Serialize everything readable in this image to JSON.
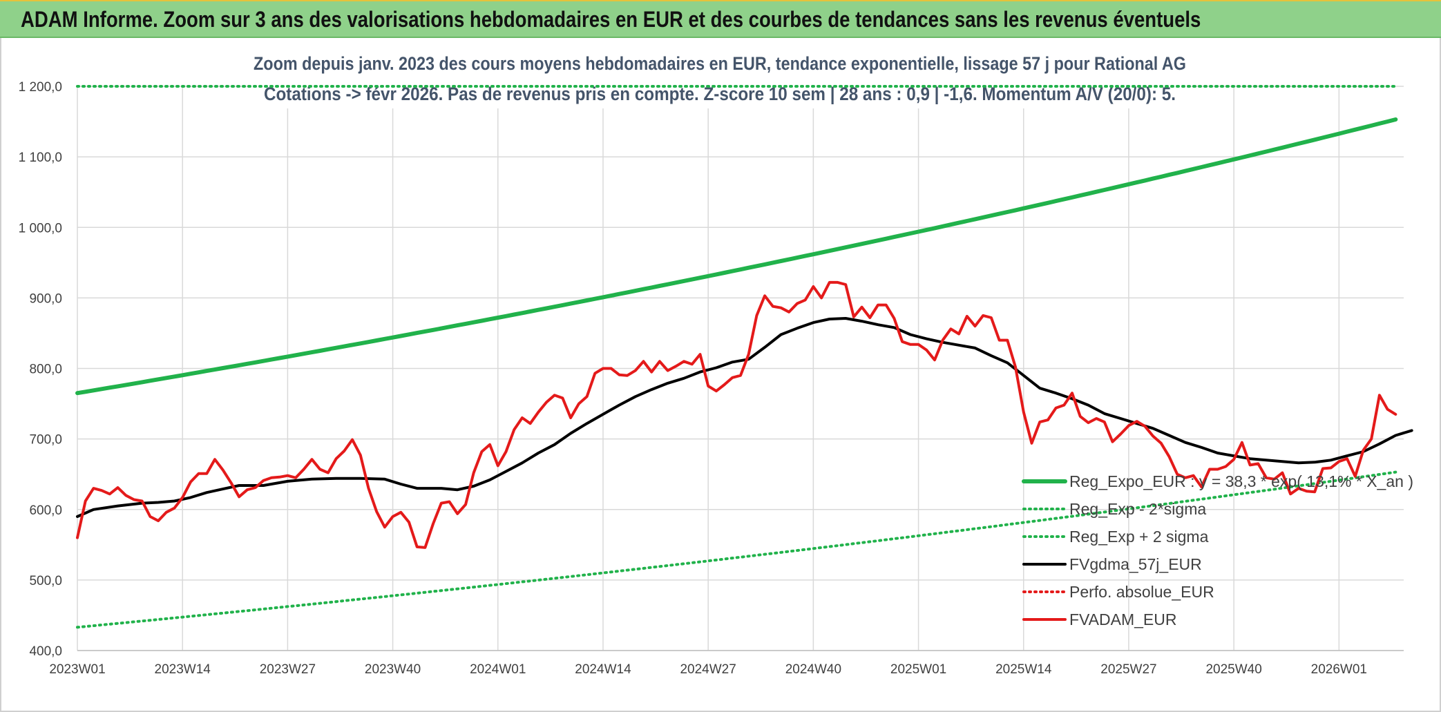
{
  "header": {
    "title": "ADAM Informe. Zoom sur 3 ans des valorisations hebdomadaires en EUR et des courbes de tendances sans les revenus éventuels"
  },
  "chart_data": {
    "type": "line",
    "subtitle_line1": "Zoom depuis janv. 2023 des cours moyens hebdomadaires en EUR, tendance exponentielle, lissage 57 j pour Rational AG",
    "subtitle_line2": "Cotations -> févr 2026. Pas de revenus pris en compte. Z-score 10 sem | 28 ans : 0,9 | -1,6. Momentum A/V (20/0): 5.",
    "ylim": [
      400,
      1200
    ],
    "yticks": [
      "400,0",
      "500,0",
      "600,0",
      "700,0",
      "800,0",
      "900,0",
      "1 000,0",
      "1 100,0",
      "1 200,0"
    ],
    "ytick_values": [
      400,
      500,
      600,
      700,
      800,
      900,
      1000,
      1100,
      1200
    ],
    "xticks": [
      "2023W01",
      "2023W14",
      "2023W27",
      "2023W40",
      "2024W01",
      "2024W14",
      "2024W27",
      "2024W40",
      "2025W01",
      "2025W14",
      "2025W27",
      "2025W40",
      "2026W01"
    ],
    "xtick_weeks": [
      0,
      13,
      26,
      39,
      52,
      65,
      78,
      91,
      104,
      117,
      130,
      143,
      156
    ],
    "x_weeks_range": [
      0,
      164
    ],
    "grid": true,
    "legend_position": "bottom-right",
    "colors": {
      "reg_expo": "#21b24b",
      "sigma": "#21b24b",
      "fvgdma": "#000000",
      "perfo": "#e41a1a",
      "fvadam": "#e41a1a"
    },
    "series": [
      {
        "name": "Reg_Expo_EUR : y = 38,3 * exp( 13,1% * X_an )",
        "style": "thick",
        "color": "#21b24b",
        "exp_start": 765,
        "exp_end": 1153
      },
      {
        "name": "Reg_Exp - 2*sigma",
        "style": "dotted",
        "color": "#21b24b",
        "exp_start": 433,
        "exp_end": 653
      },
      {
        "name": "Reg_Exp + 2 sigma",
        "style": "dotted",
        "color": "#21b24b",
        "exp_start": 1200,
        "exp_end": 1200
      },
      {
        "name": "FVgdma_57j_EUR",
        "style": "solid",
        "color": "#000000",
        "points": [
          [
            0,
            590
          ],
          [
            2,
            600
          ],
          [
            5,
            605
          ],
          [
            8,
            609
          ],
          [
            10,
            610
          ],
          [
            12,
            612
          ],
          [
            14,
            617
          ],
          [
            16,
            624
          ],
          [
            18,
            629
          ],
          [
            20,
            634
          ],
          [
            23,
            634
          ],
          [
            26,
            640
          ],
          [
            29,
            643
          ],
          [
            32,
            644
          ],
          [
            35,
            644
          ],
          [
            38,
            643
          ],
          [
            40,
            636
          ],
          [
            42,
            630
          ],
          [
            45,
            630
          ],
          [
            47,
            628
          ],
          [
            49,
            633
          ],
          [
            51,
            642
          ],
          [
            53,
            654
          ],
          [
            55,
            666
          ],
          [
            57,
            680
          ],
          [
            59,
            692
          ],
          [
            61,
            708
          ],
          [
            63,
            722
          ],
          [
            65,
            735
          ],
          [
            67,
            748
          ],
          [
            69,
            760
          ],
          [
            71,
            770
          ],
          [
            73,
            779
          ],
          [
            75,
            786
          ],
          [
            77,
            795
          ],
          [
            79,
            801
          ],
          [
            81,
            809
          ],
          [
            83,
            813
          ],
          [
            85,
            830
          ],
          [
            87,
            848
          ],
          [
            89,
            857
          ],
          [
            91,
            865
          ],
          [
            93,
            870
          ],
          [
            95,
            871
          ],
          [
            97,
            867
          ],
          [
            99,
            862
          ],
          [
            101,
            858
          ],
          [
            103,
            848
          ],
          [
            105,
            842
          ],
          [
            107,
            837
          ],
          [
            109,
            833
          ],
          [
            111,
            829
          ],
          [
            113,
            818
          ],
          [
            115,
            808
          ],
          [
            117,
            790
          ],
          [
            119,
            772
          ],
          [
            121,
            765
          ],
          [
            123,
            757
          ],
          [
            125,
            748
          ],
          [
            127,
            736
          ],
          [
            129,
            729
          ],
          [
            131,
            722
          ],
          [
            133,
            715
          ],
          [
            135,
            705
          ],
          [
            137,
            695
          ],
          [
            139,
            688
          ],
          [
            141,
            680
          ],
          [
            143,
            676
          ],
          [
            145,
            672
          ],
          [
            147,
            670
          ],
          [
            149,
            668
          ],
          [
            151,
            666
          ],
          [
            153,
            667
          ],
          [
            155,
            670
          ],
          [
            157,
            676
          ],
          [
            159,
            682
          ],
          [
            161,
            693
          ],
          [
            163,
            705
          ],
          [
            165,
            712
          ]
        ]
      },
      {
        "name": "Perfo. absolue_EUR",
        "style": "dotted",
        "color": "#e41a1a"
      },
      {
        "name": "FVADAM_EUR",
        "style": "solid",
        "color": "#e41a1a",
        "points": [
          [
            0,
            560
          ],
          [
            1,
            612
          ],
          [
            2,
            630
          ],
          [
            3,
            627
          ],
          [
            4,
            622
          ],
          [
            5,
            631
          ],
          [
            6,
            620
          ],
          [
            7,
            614
          ],
          [
            8,
            612
          ],
          [
            9,
            590
          ],
          [
            10,
            584
          ],
          [
            11,
            596
          ],
          [
            12,
            602
          ],
          [
            13,
            617
          ],
          [
            14,
            639
          ],
          [
            15,
            651
          ],
          [
            16,
            651
          ],
          [
            17,
            671
          ],
          [
            18,
            656
          ],
          [
            19,
            638
          ],
          [
            20,
            618
          ],
          [
            21,
            628
          ],
          [
            22,
            631
          ],
          [
            23,
            641
          ],
          [
            24,
            645
          ],
          [
            25,
            646
          ],
          [
            26,
            648
          ],
          [
            27,
            645
          ],
          [
            28,
            657
          ],
          [
            29,
            671
          ],
          [
            30,
            657
          ],
          [
            31,
            652
          ],
          [
            32,
            672
          ],
          [
            33,
            683
          ],
          [
            34,
            699
          ],
          [
            35,
            677
          ],
          [
            36,
            630
          ],
          [
            37,
            597
          ],
          [
            38,
            575
          ],
          [
            39,
            590
          ],
          [
            40,
            596
          ],
          [
            41,
            582
          ],
          [
            42,
            547
          ],
          [
            43,
            546
          ],
          [
            44,
            580
          ],
          [
            45,
            609
          ],
          [
            46,
            611
          ],
          [
            47,
            594
          ],
          [
            48,
            607
          ],
          [
            49,
            652
          ],
          [
            50,
            682
          ],
          [
            51,
            692
          ],
          [
            52,
            662
          ],
          [
            53,
            682
          ],
          [
            54,
            713
          ],
          [
            55,
            730
          ],
          [
            56,
            722
          ],
          [
            57,
            738
          ],
          [
            58,
            752
          ],
          [
            59,
            762
          ],
          [
            60,
            758
          ],
          [
            61,
            730
          ],
          [
            62,
            750
          ],
          [
            63,
            760
          ],
          [
            64,
            793
          ],
          [
            65,
            800
          ],
          [
            66,
            800
          ],
          [
            67,
            791
          ],
          [
            68,
            790
          ],
          [
            69,
            797
          ],
          [
            70,
            810
          ],
          [
            71,
            795
          ],
          [
            72,
            810
          ],
          [
            73,
            797
          ],
          [
            74,
            803
          ],
          [
            75,
            810
          ],
          [
            76,
            806
          ],
          [
            77,
            820
          ],
          [
            78,
            775
          ],
          [
            79,
            768
          ],
          [
            80,
            777
          ],
          [
            81,
            787
          ],
          [
            82,
            790
          ],
          [
            83,
            820
          ],
          [
            84,
            875
          ],
          [
            85,
            903
          ],
          [
            86,
            888
          ],
          [
            87,
            886
          ],
          [
            88,
            880
          ],
          [
            89,
            892
          ],
          [
            90,
            897
          ],
          [
            91,
            916
          ],
          [
            92,
            900
          ],
          [
            93,
            922
          ],
          [
            94,
            922
          ],
          [
            95,
            919
          ],
          [
            96,
            873
          ],
          [
            97,
            887
          ],
          [
            98,
            872
          ],
          [
            99,
            890
          ],
          [
            100,
            890
          ],
          [
            101,
            871
          ],
          [
            102,
            838
          ],
          [
            103,
            834
          ],
          [
            104,
            834
          ],
          [
            105,
            826
          ],
          [
            106,
            812
          ],
          [
            107,
            840
          ],
          [
            108,
            856
          ],
          [
            109,
            849
          ],
          [
            110,
            874
          ],
          [
            111,
            860
          ],
          [
            112,
            875
          ],
          [
            113,
            872
          ],
          [
            114,
            840
          ],
          [
            115,
            840
          ],
          [
            116,
            802
          ],
          [
            117,
            738
          ],
          [
            118,
            694
          ],
          [
            119,
            724
          ],
          [
            120,
            727
          ],
          [
            121,
            744
          ],
          [
            122,
            748
          ],
          [
            123,
            765
          ],
          [
            124,
            732
          ],
          [
            125,
            723
          ],
          [
            126,
            729
          ],
          [
            127,
            724
          ],
          [
            128,
            696
          ],
          [
            129,
            707
          ],
          [
            130,
            719
          ],
          [
            131,
            725
          ],
          [
            132,
            718
          ],
          [
            133,
            704
          ],
          [
            134,
            694
          ],
          [
            135,
            675
          ],
          [
            136,
            650
          ],
          [
            137,
            645
          ],
          [
            138,
            648
          ],
          [
            139,
            632
          ],
          [
            140,
            657
          ],
          [
            141,
            657
          ],
          [
            142,
            661
          ],
          [
            143,
            671
          ],
          [
            144,
            695
          ],
          [
            145,
            663
          ],
          [
            146,
            665
          ],
          [
            147,
            645
          ],
          [
            148,
            643
          ],
          [
            149,
            652
          ],
          [
            150,
            622
          ],
          [
            151,
            630
          ],
          [
            152,
            626
          ],
          [
            153,
            625
          ],
          [
            154,
            658
          ],
          [
            155,
            659
          ],
          [
            156,
            668
          ],
          [
            157,
            672
          ],
          [
            158,
            647
          ],
          [
            159,
            684
          ],
          [
            160,
            700
          ],
          [
            161,
            762
          ],
          [
            162,
            742
          ],
          [
            163,
            735
          ]
        ]
      }
    ]
  }
}
